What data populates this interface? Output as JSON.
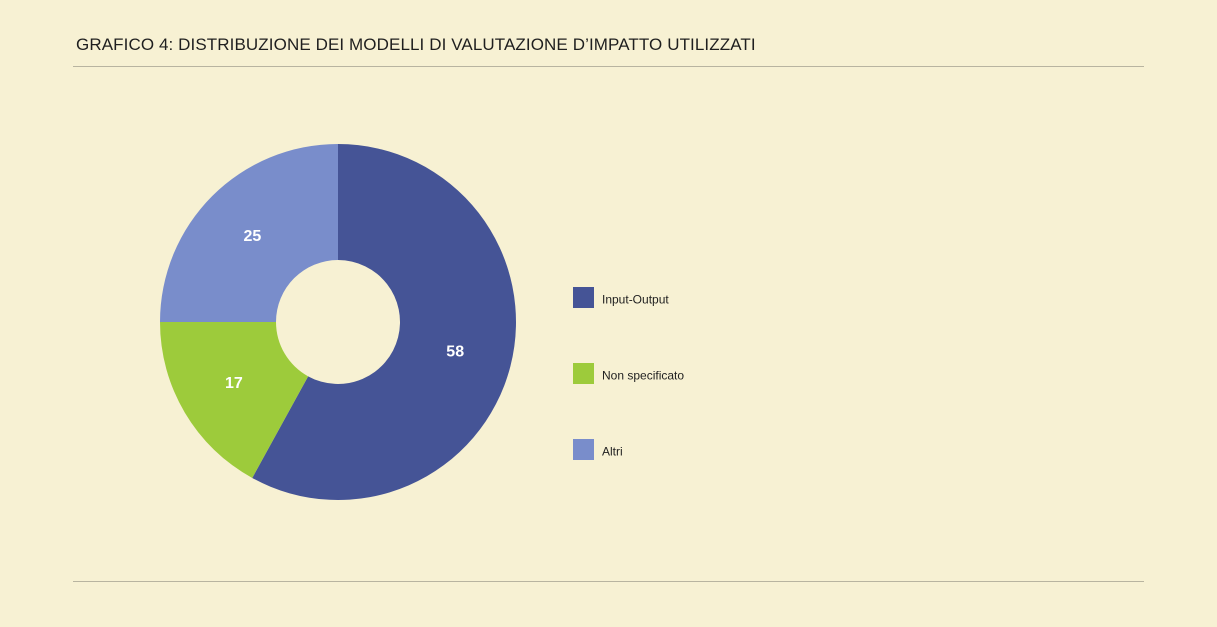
{
  "title": "GRAFICO 4: DISTRIBUZIONE DEI MODELLI DI VALUTAZIONE D’IMPATTO UTILIZZATI",
  "chart_data": {
    "type": "pie",
    "donut": true,
    "title": "GRAFICO 4: DISTRIBUZIONE DEI MODELLI DI VALUTAZIONE D’IMPATTO UTILIZZATI",
    "categories": [
      "Input-Output",
      "Non specificato",
      "Altri"
    ],
    "values": [
      58,
      17,
      25
    ],
    "colors": [
      "#455496",
      "#9dcb3b",
      "#798dcb"
    ],
    "data_labels": [
      "58",
      "17",
      "25"
    ],
    "legend_placement": "right"
  }
}
